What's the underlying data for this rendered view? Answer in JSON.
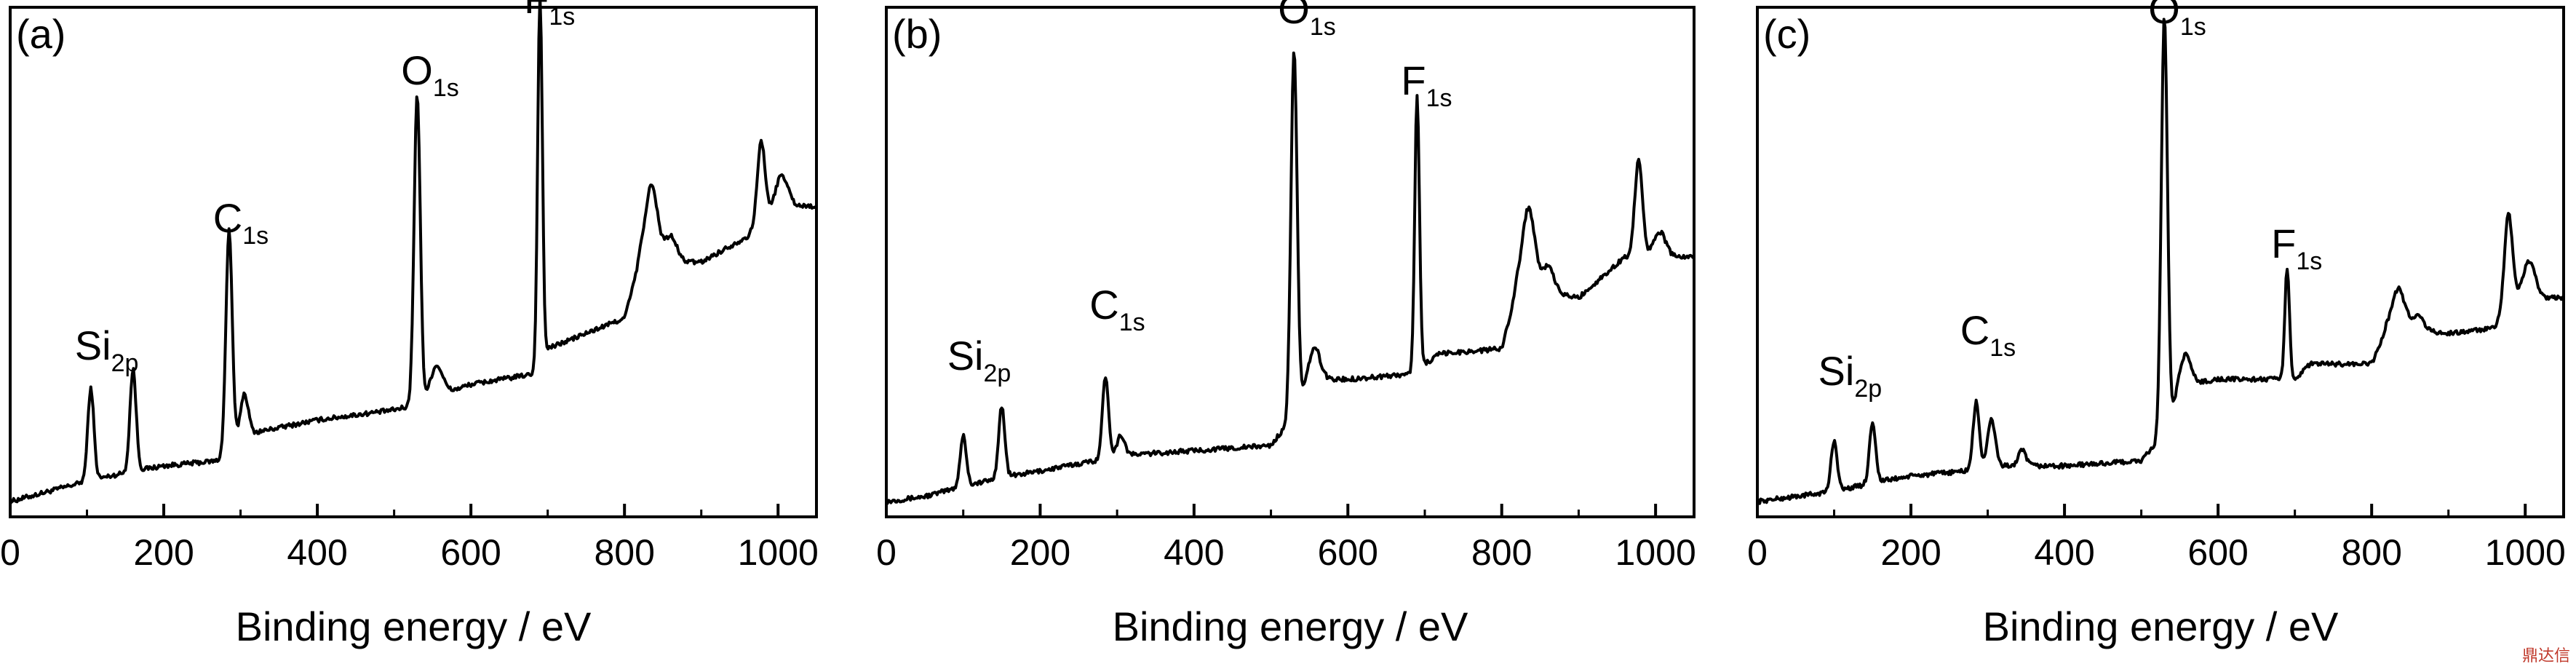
{
  "chart_data": [
    {
      "panel": "(a)",
      "type": "line",
      "xlabel": "Binding energy / eV",
      "ylabel": "",
      "xlim": [
        0,
        1050
      ],
      "ylim": [
        0,
        100
      ],
      "xticks": [
        0,
        200,
        400,
        600,
        800,
        1000
      ],
      "yticks_visible": false,
      "grid": false,
      "annotations": [
        {
          "main": "Si",
          "sub": "2p",
          "x": 105,
          "y": 30
        },
        {
          "main": "C",
          "sub": "1s",
          "x": 285,
          "y": 55
        },
        {
          "main": "O",
          "sub": "1s",
          "x": 530,
          "y": 84
        },
        {
          "main": "F",
          "sub": "1s",
          "x": 690,
          "y": 98
        }
      ],
      "series": [
        {
          "color": "#000000",
          "baseline": [
            [
              0,
              3
            ],
            [
              50,
              5
            ],
            [
              100,
              7
            ],
            [
              160,
              9
            ],
            [
              200,
              10
            ],
            [
              270,
              11
            ],
            [
              300,
              16
            ],
            [
              400,
              19
            ],
            [
              500,
              21
            ],
            [
              530,
              22
            ],
            [
              560,
              24
            ],
            [
              600,
              26
            ],
            [
              680,
              28
            ],
            [
              700,
              33
            ],
            [
              800,
              39
            ],
            [
              820,
              50
            ],
            [
              900,
              50
            ],
            [
              960,
              55
            ],
            [
              1000,
              61
            ],
            [
              1050,
              61
            ]
          ],
          "peaks": [
            [
              105,
              18,
              4
            ],
            [
              160,
              20,
              4
            ],
            [
              285,
              43,
              4
            ],
            [
              305,
              8,
              5
            ],
            [
              530,
              61,
              4
            ],
            [
              555,
              6,
              8
            ],
            [
              690,
              72,
              3
            ],
            [
              835,
              15,
              8
            ],
            [
              860,
              5,
              8
            ],
            [
              978,
              16,
              5
            ],
            [
              1005,
              6,
              8
            ]
          ]
        }
      ]
    },
    {
      "panel": "(b)",
      "type": "line",
      "xlabel": "Binding energy / eV",
      "ylabel": "",
      "xlim": [
        0,
        1050
      ],
      "ylim": [
        0,
        100
      ],
      "xticks": [
        0,
        200,
        400,
        600,
        800,
        1000
      ],
      "yticks_visible": false,
      "grid": false,
      "annotations": [
        {
          "main": "Si",
          "sub": "2p",
          "x": 100,
          "y": 28
        },
        {
          "main": "C",
          "sub": "1s",
          "x": 285,
          "y": 38
        },
        {
          "main": "O",
          "sub": "1s",
          "x": 530,
          "y": 96
        },
        {
          "main": "F",
          "sub": "1s",
          "x": 690,
          "y": 82
        }
      ],
      "series": [
        {
          "color": "#000000",
          "baseline": [
            [
              0,
              3
            ],
            [
              50,
              4
            ],
            [
              100,
              6
            ],
            [
              160,
              8
            ],
            [
              200,
              9
            ],
            [
              270,
              11
            ],
            [
              300,
              12
            ],
            [
              400,
              13
            ],
            [
              500,
              14
            ],
            [
              530,
              20
            ],
            [
              560,
              27
            ],
            [
              600,
              27
            ],
            [
              680,
              28
            ],
            [
              720,
              32
            ],
            [
              800,
              33
            ],
            [
              820,
              45
            ],
            [
              900,
              43
            ],
            [
              960,
              51
            ],
            [
              1000,
              51
            ],
            [
              1050,
              51
            ]
          ],
          "peaks": [
            [
              100,
              10,
              4
            ],
            [
              150,
              14,
              4
            ],
            [
              285,
              16,
              4
            ],
            [
              305,
              4,
              5
            ],
            [
              530,
              72,
              4
            ],
            [
              555,
              7,
              8
            ],
            [
              690,
              54,
              3
            ],
            [
              835,
              16,
              8
            ],
            [
              860,
              5,
              8
            ],
            [
              978,
              19,
              5
            ],
            [
              1005,
              5,
              8
            ]
          ]
        }
      ]
    },
    {
      "panel": "(c)",
      "type": "line",
      "xlabel": "Binding energy / eV",
      "ylabel": "",
      "xlim": [
        0,
        1050
      ],
      "ylim": [
        0,
        100
      ],
      "xticks": [
        0,
        200,
        400,
        600,
        800,
        1000
      ],
      "yticks_visible": false,
      "grid": false,
      "annotations": [
        {
          "main": "Si",
          "sub": "2p",
          "x": 100,
          "y": 25
        },
        {
          "main": "C",
          "sub": "1s",
          "x": 285,
          "y": 33
        },
        {
          "main": "O",
          "sub": "1s",
          "x": 530,
          "y": 96
        },
        {
          "main": "F",
          "sub": "1s",
          "x": 690,
          "y": 50
        }
      ],
      "series": [
        {
          "color": "#000000",
          "baseline": [
            [
              0,
              3
            ],
            [
              50,
              4
            ],
            [
              100,
              5
            ],
            [
              160,
              7
            ],
            [
              200,
              8
            ],
            [
              270,
              9
            ],
            [
              300,
              10
            ],
            [
              400,
              10
            ],
            [
              500,
              11
            ],
            [
              530,
              16
            ],
            [
              560,
              26
            ],
            [
              600,
              27
            ],
            [
              700,
              27
            ],
            [
              720,
              30
            ],
            [
              800,
              30
            ],
            [
              820,
              37
            ],
            [
              900,
              36
            ],
            [
              960,
              37
            ],
            [
              980,
              43
            ],
            [
              1050,
              43
            ]
          ],
          "peaks": [
            [
              100,
              10,
              4
            ],
            [
              150,
              12,
              4
            ],
            [
              285,
              13,
              4
            ],
            [
              305,
              9,
              5
            ],
            [
              345,
              3,
              5
            ],
            [
              530,
              82,
              4
            ],
            [
              555,
              7,
              8
            ],
            [
              690,
              22,
              3
            ],
            [
              835,
              8,
              8
            ],
            [
              860,
              3,
              8
            ],
            [
              978,
              17,
              5
            ],
            [
              1005,
              7,
              8
            ]
          ]
        }
      ]
    }
  ],
  "watermark": "鼎达信"
}
